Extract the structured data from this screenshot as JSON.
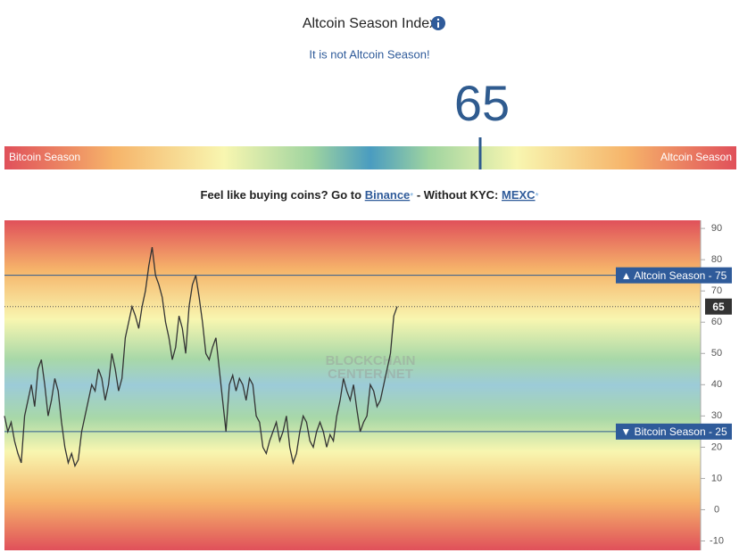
{
  "header": {
    "title": "Altcoin Season Index",
    "status": "It is not Altcoin Season!",
    "index_value": 65
  },
  "gauge": {
    "left_label": "Bitcoin Season",
    "right_label": "Altcoin Season",
    "range": [
      0,
      100
    ],
    "value": 65
  },
  "promo": {
    "lead": "Feel like buying coins? Go to",
    "binance": "Binance",
    "star": "*",
    "mid": "- Without KYC:",
    "mexc": "MEXC"
  },
  "chart_data": {
    "type": "line",
    "watermark": [
      "BLOCKCHAIN",
      "CENTER.NET"
    ],
    "series": [
      {
        "color": "#333333",
        "values": [
          30,
          25,
          28,
          22,
          18,
          15,
          30,
          35,
          40,
          33,
          45,
          48,
          40,
          30,
          35,
          42,
          38,
          28,
          20,
          15,
          18,
          14,
          16,
          25,
          30,
          35,
          40,
          38,
          45,
          42,
          35,
          40,
          50,
          45,
          38,
          42,
          55,
          60,
          65,
          62,
          58,
          65,
          70,
          78,
          84,
          75,
          72,
          68,
          60,
          55,
          48,
          52,
          62,
          58,
          50,
          65,
          72,
          75,
          68,
          60,
          50,
          48,
          52,
          55,
          45,
          35,
          25,
          40,
          43,
          38,
          42,
          40,
          35,
          42,
          40,
          30,
          28,
          20,
          18,
          22,
          25,
          28,
          22,
          25,
          30,
          20,
          15,
          18,
          25,
          30,
          28,
          22,
          20,
          25,
          28,
          25,
          20,
          24,
          22,
          30,
          35,
          42,
          38,
          35,
          40,
          32,
          25,
          28,
          30,
          40,
          38,
          33,
          35,
          40,
          45,
          50,
          62,
          65
        ]
      }
    ],
    "ylim": [
      -13,
      92.6
    ],
    "yticks": [
      -10,
      0,
      10,
      20,
      30,
      40,
      50,
      60,
      70,
      80,
      90
    ],
    "thresholds": [
      {
        "value": 75,
        "label": "▲ Altcoin Season - 75"
      },
      {
        "value": 25,
        "label": "▼ Bitcoin Season - 25"
      }
    ],
    "current": 65
  }
}
